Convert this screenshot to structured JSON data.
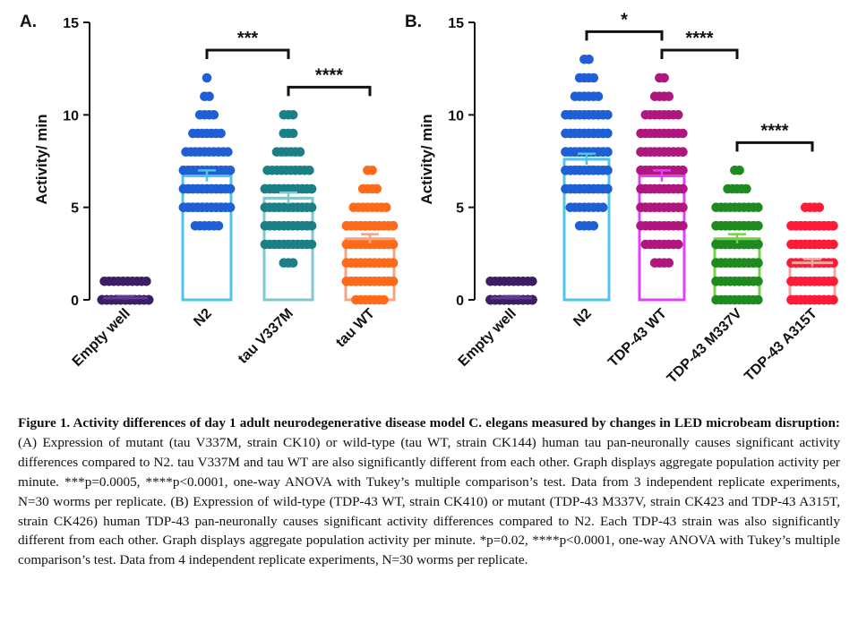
{
  "chart_data": [
    {
      "type": "bar",
      "panel": "A.",
      "ylabel": "Activity/ min",
      "ylim": [
        0,
        15
      ],
      "yticks": [
        0,
        5,
        10,
        15
      ],
      "categories": [
        "Empty well",
        "N2",
        "tau V337M",
        "tau WT"
      ],
      "values": [
        0.1,
        6.7,
        5.5,
        3.3
      ],
      "sem": [
        0.1,
        0.3,
        0.3,
        0.25
      ],
      "colors": {
        "bar": [
          "#5e3c99",
          "#4fc3e8",
          "#7fc8cf",
          "#f4a582"
        ],
        "points": [
          "#3b1e63",
          "#1f5fd6",
          "#1b7f86",
          "#ff6a1a"
        ]
      },
      "points": [
        [
          [
            0,
            80
          ],
          [
            1,
            10
          ]
        ],
        [
          [
            4,
            6
          ],
          [
            5,
            26
          ],
          [
            6,
            20
          ],
          [
            7,
            14
          ],
          [
            8,
            10
          ],
          [
            9,
            7
          ],
          [
            10,
            4
          ],
          [
            11,
            2
          ],
          [
            12,
            1
          ]
        ],
        [
          [
            2,
            3
          ],
          [
            3,
            11
          ],
          [
            4,
            18
          ],
          [
            5,
            20
          ],
          [
            6,
            14
          ],
          [
            7,
            10
          ],
          [
            8,
            6
          ],
          [
            9,
            3
          ],
          [
            10,
            3
          ]
        ],
        [
          [
            0,
            7
          ],
          [
            1,
            15
          ],
          [
            2,
            18
          ],
          [
            3,
            18
          ],
          [
            4,
            17
          ],
          [
            5,
            8
          ],
          [
            6,
            4
          ],
          [
            7,
            2
          ]
        ]
      ],
      "comparisons": [
        {
          "from": 1,
          "to": 2,
          "label": "***"
        },
        {
          "from": 2,
          "to": 3,
          "label": "****"
        }
      ]
    },
    {
      "type": "bar",
      "panel": "B.",
      "ylabel": "Activity/ min",
      "ylim": [
        0,
        15
      ],
      "yticks": [
        0,
        5,
        10,
        15
      ],
      "categories": [
        "Empty well",
        "N2",
        "TDP-43 WT",
        "TDP-43 M337V",
        "TDP-43 A315T"
      ],
      "values": [
        0.1,
        7.6,
        6.7,
        3.3,
        2.0
      ],
      "sem": [
        0.1,
        0.3,
        0.3,
        0.25,
        0.2
      ],
      "colors": {
        "bar": [
          "#5e3c99",
          "#4fc3e8",
          "#e040fb",
          "#76d14d",
          "#f4a5a0"
        ],
        "points": [
          "#3b1e63",
          "#1f5fd6",
          "#b0177e",
          "#1f8a1f",
          "#ff1a38"
        ]
      },
      "points": [
        [
          [
            0,
            100
          ],
          [
            1,
            10
          ]
        ],
        [
          [
            4,
            4
          ],
          [
            5,
            8
          ],
          [
            6,
            14
          ],
          [
            7,
            22
          ],
          [
            8,
            30
          ],
          [
            9,
            16
          ],
          [
            10,
            12
          ],
          [
            11,
            6
          ],
          [
            12,
            4
          ],
          [
            13,
            2
          ]
        ],
        [
          [
            2,
            4
          ],
          [
            3,
            8
          ],
          [
            4,
            10
          ],
          [
            5,
            14
          ],
          [
            6,
            16
          ],
          [
            7,
            18
          ],
          [
            8,
            16
          ],
          [
            9,
            10
          ],
          [
            10,
            8
          ],
          [
            11,
            4
          ],
          [
            12,
            2
          ]
        ],
        [
          [
            0,
            10
          ],
          [
            1,
            16
          ],
          [
            2,
            28
          ],
          [
            3,
            26
          ],
          [
            4,
            20
          ],
          [
            5,
            10
          ],
          [
            6,
            5
          ],
          [
            7,
            2
          ]
        ],
        [
          [
            0,
            25
          ],
          [
            1,
            26
          ],
          [
            2,
            30
          ],
          [
            3,
            20
          ],
          [
            4,
            12
          ],
          [
            5,
            4
          ]
        ]
      ],
      "comparisons": [
        {
          "from": 1,
          "to": 2,
          "label": "*"
        },
        {
          "from": 2,
          "to": 3,
          "label": "****"
        },
        {
          "from": 3,
          "to": 4,
          "label": "****"
        }
      ]
    }
  ],
  "caption": {
    "bold": "Figure 1. Activity differences of day 1 adult neurodegenerative disease model C. elegans measured by changes in LED microbeam disruption:",
    "text": " (A) Expression of mutant (tau V337M, strain CK10) or wild-type (tau WT, strain CK144) human tau pan-neuronally causes significant activity differences compared to N2. tau V337M and tau WT are also significantly different from each other. Graph displays aggregate population activity per minute. ***p=0.0005, ****p<0.0001, one-way ANOVA with Tukey’s multiple comparison’s test. Data from 3 independent replicate experiments, N=30 worms per replicate. (B) Expression of wild-type (TDP-43 WT, strain CK410) or mutant (TDP-43 M337V, strain CK423 and TDP-43 A315T, strain CK426) human TDP-43 pan-neuronally causes significant activity differences compared to N2. Each TDP-43 strain was also significantly different from each other. Graph displays aggregate population activity per minute. *p=0.02, ****p<0.0001, one-way ANOVA with Tukey’s multiple comparison’s test. Data from 4 independent replicate experiments, N=30 worms per replicate."
  }
}
